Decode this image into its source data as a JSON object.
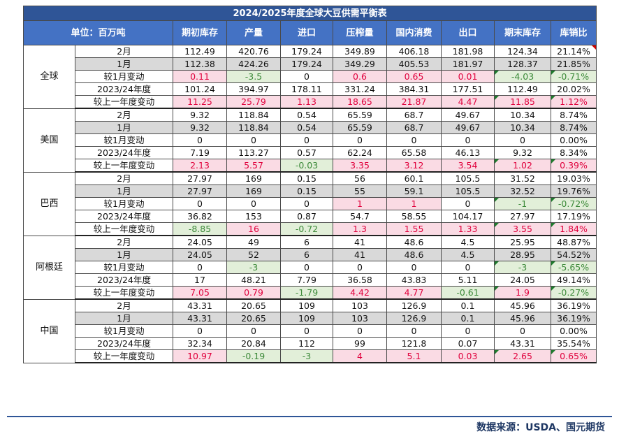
{
  "title": "2024/2025年度全球大豆供需平衡表",
  "unit_label": "单位：百万吨",
  "columns": [
    "期初库存",
    "产量",
    "进口",
    "压榨量",
    "国内消费",
    "出口",
    "期末库存",
    "库销比"
  ],
  "regions": [
    {
      "name": "全球",
      "rows": [
        {
          "label": "2月",
          "values": [
            "112.49",
            "420.76",
            "179.24",
            "349.89",
            "406.18",
            "181.98",
            "124.34",
            "21.14%"
          ]
        },
        {
          "label": "1月",
          "values": [
            "112.38",
            "424.26",
            "179.24",
            "349.29",
            "405.53",
            "181.97",
            "128.37",
            "21.85%"
          ]
        },
        {
          "label": "较1月变动",
          "values": [
            "0.11",
            "-3.5",
            "0",
            "0.6",
            "0.65",
            "0.01",
            "-4.03",
            "-0.71%"
          ]
        },
        {
          "label": "2023/24年度",
          "values": [
            "101.24",
            "394.97",
            "178.11",
            "331.24",
            "384.31",
            "177.51",
            "112.49",
            "20.02%"
          ]
        },
        {
          "label": "较上一年度变动",
          "values": [
            "11.25",
            "25.79",
            "1.13",
            "18.65",
            "21.87",
            "4.47",
            "11.85",
            "1.12%"
          ]
        }
      ]
    },
    {
      "name": "美国",
      "rows": [
        {
          "label": "2月",
          "values": [
            "9.32",
            "118.84",
            "0.54",
            "65.59",
            "68.7",
            "49.67",
            "10.34",
            "8.74%"
          ]
        },
        {
          "label": "1月",
          "values": [
            "9.32",
            "118.84",
            "0.54",
            "65.59",
            "68.7",
            "49.67",
            "10.34",
            "8.74%"
          ]
        },
        {
          "label": "较1月变动",
          "values": [
            "0",
            "0",
            "0",
            "0",
            "0",
            "0",
            "0",
            "0.00%"
          ]
        },
        {
          "label": "2023/24年度",
          "values": [
            "7.19",
            "113.27",
            "0.57",
            "62.24",
            "65.58",
            "46.13",
            "9.32",
            "8.34%"
          ]
        },
        {
          "label": "较上一年度变动",
          "values": [
            "2.13",
            "5.57",
            "-0.03",
            "3.35",
            "3.12",
            "3.54",
            "1.02",
            "0.39%"
          ]
        }
      ]
    },
    {
      "name": "巴西",
      "rows": [
        {
          "label": "2月",
          "values": [
            "27.97",
            "169",
            "0.15",
            "56",
            "60.1",
            "105.5",
            "31.52",
            "19.03%"
          ]
        },
        {
          "label": "1月",
          "values": [
            "27.97",
            "169",
            "0.15",
            "55",
            "59.1",
            "105.5",
            "32.52",
            "19.76%"
          ]
        },
        {
          "label": "较1月变动",
          "values": [
            "0",
            "0",
            "0",
            "1",
            "1",
            "0",
            "-1",
            "-0.72%"
          ]
        },
        {
          "label": "2023/24年度",
          "values": [
            "36.82",
            "153",
            "0.87",
            "54.7",
            "58.55",
            "104.17",
            "27.97",
            "17.19%"
          ]
        },
        {
          "label": "较上一年度变动",
          "values": [
            "-8.85",
            "16",
            "-0.72",
            "1.3",
            "1.55",
            "1.33",
            "3.55",
            "1.84%"
          ]
        }
      ]
    },
    {
      "name": "阿根廷",
      "rows": [
        {
          "label": "2月",
          "values": [
            "24.05",
            "49",
            "6",
            "41",
            "48.6",
            "4.5",
            "25.95",
            "48.87%"
          ]
        },
        {
          "label": "1月",
          "values": [
            "24.05",
            "52",
            "6",
            "41",
            "48.6",
            "4.5",
            "28.95",
            "54.52%"
          ]
        },
        {
          "label": "较1月变动",
          "values": [
            "0",
            "-3",
            "0",
            "0",
            "0",
            "0",
            "-3",
            "-5.65%"
          ]
        },
        {
          "label": "2023/24年度",
          "values": [
            "17",
            "48.21",
            "7.79",
            "36.58",
            "43.83",
            "5.11",
            "24.05",
            "49.14%"
          ]
        },
        {
          "label": "较上一年度变动",
          "values": [
            "7.05",
            "0.79",
            "-1.79",
            "4.42",
            "4.77",
            "-0.61",
            "1.9",
            "-0.27%"
          ]
        }
      ]
    },
    {
      "name": "中国",
      "rows": [
        {
          "label": "2月",
          "values": [
            "43.31",
            "20.65",
            "109",
            "103",
            "126.9",
            "0.1",
            "45.96",
            "36.19%"
          ]
        },
        {
          "label": "1月",
          "values": [
            "43.31",
            "20.65",
            "109",
            "103",
            "126.9",
            "0.1",
            "45.96",
            "36.19%"
          ]
        },
        {
          "label": "较1月变动",
          "values": [
            "0",
            "0",
            "0",
            "0",
            "0",
            "0",
            "0",
            "0.00%"
          ]
        },
        {
          "label": "2023/24年度",
          "values": [
            "32.34",
            "20.84",
            "112",
            "99",
            "121.8",
            "0.07",
            "43.31",
            "35.54%"
          ]
        },
        {
          "label": "较上一年度变动",
          "values": [
            "10.97",
            "-0.19",
            "-3",
            "4",
            "5.1",
            "0.03",
            "2.65",
            "0.65%"
          ]
        }
      ]
    }
  ],
  "source": "数据来源：USDA、国元期货",
  "colors": {
    "title_bg": "#2f5597",
    "header_bg": "#4472c4",
    "positive_bg": "#fadbe4",
    "positive_fg": "#e0003c",
    "negative_bg": "#e2efd9",
    "negative_fg": "#3d8a3a",
    "grey_row": "#d9d9d9"
  }
}
